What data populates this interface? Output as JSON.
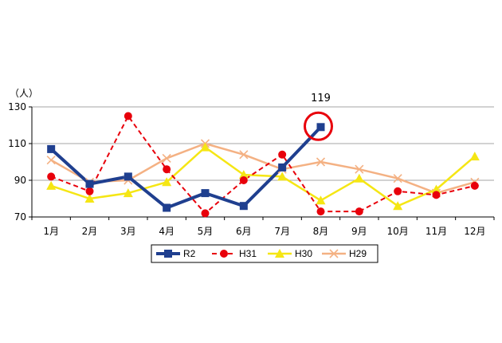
{
  "chart_data": {
    "type": "line",
    "y_unit": "（人）",
    "categories": [
      "1月",
      "2月",
      "3月",
      "4月",
      "5月",
      "6月",
      "7月",
      "8月",
      "9月",
      "10月",
      "11月",
      "12月"
    ],
    "ylim": [
      70,
      130
    ],
    "yticks": [
      70,
      90,
      110,
      130
    ],
    "grid": true,
    "legend_position": "bottom",
    "series": [
      {
        "name": "R2",
        "color": "#1F3F8F",
        "marker": "square",
        "line": "solid",
        "values": [
          107,
          88,
          92,
          75,
          83,
          76,
          97,
          119,
          null,
          null,
          null,
          null
        ]
      },
      {
        "name": "H31",
        "color": "#E8000B",
        "marker": "circle",
        "line": "dashed",
        "values": [
          92,
          84,
          125,
          96,
          72,
          90,
          104,
          73,
          73,
          84,
          82,
          87
        ]
      },
      {
        "name": "H30",
        "color": "#F5E614",
        "marker": "triangle",
        "line": "solid",
        "values": [
          87,
          80,
          83,
          89,
          108,
          93,
          92,
          79,
          91,
          76,
          85,
          103
        ]
      },
      {
        "name": "H29",
        "color": "#F4B183",
        "marker": "x",
        "line": "solid",
        "values": [
          101,
          89,
          90,
          102,
          110,
          104,
          96,
          100,
          96,
          91,
          83,
          89
        ]
      }
    ],
    "annotation": {
      "text": "119",
      "category": "8月",
      "value": 119,
      "circle_color": "#E8000B"
    }
  }
}
